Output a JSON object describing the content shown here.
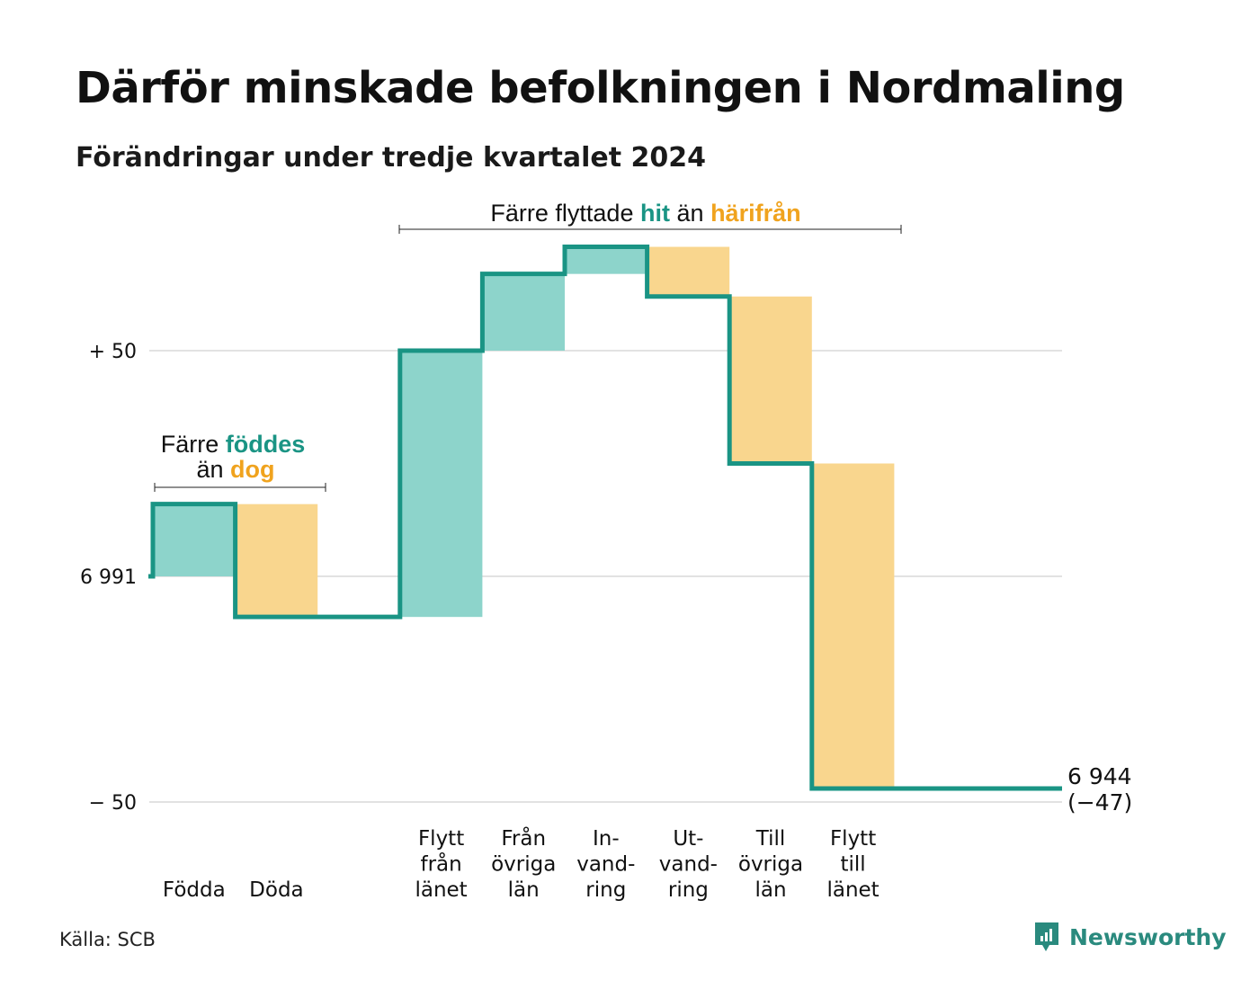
{
  "title": "Därför minskade befolkningen i Nordmaling",
  "subtitle": "Förändringar under tredje kvartalet 2024",
  "source": "Källa: SCB",
  "brand": {
    "name": "Newsworthy",
    "icon": "newsworthy-logo-icon"
  },
  "colors": {
    "increase": "#8dd4cb",
    "decrease": "#f9d68e",
    "line": "#1a9484",
    "grid": "#e2e2e2",
    "accent_teal": "#1a9484",
    "accent_orange": "#f0a31e"
  },
  "annotations": {
    "natural": {
      "line1_prefix": "Färre",
      "line1_highlight": "föddes",
      "line2_prefix": "än",
      "line2_highlight": "dog"
    },
    "migration": {
      "prefix": "Färre flyttade",
      "highlight1": "hit",
      "middle": "än",
      "highlight2": "härifrån"
    }
  },
  "end_label": {
    "value": "6 944",
    "change": "(−47)"
  },
  "chart_data": {
    "type": "waterfall",
    "title": "Därför minskade befolkningen i Nordmaling",
    "subtitle": "Förändringar under tredje kvartalet 2024",
    "start_value": 6991,
    "end_value": 6944,
    "net_change": -47,
    "y_axis": {
      "relative_to": 6991,
      "range": [
        -50,
        50
      ],
      "ticks": [
        {
          "value": 50,
          "label": "+ 50"
        },
        {
          "value": 0,
          "label": "6 991"
        },
        {
          "value": -50,
          "label": "− 50"
        }
      ]
    },
    "categories": [
      {
        "label": [
          "Födda"
        ],
        "change": 16
      },
      {
        "label": [
          "Döda"
        ],
        "change": -25
      },
      {
        "label": [],
        "change": 0
      },
      {
        "label": [
          "Flytt",
          "från",
          "länet"
        ],
        "change": 59
      },
      {
        "label": [
          "Från",
          "övriga",
          "län"
        ],
        "change": 17
      },
      {
        "label": [
          "In-",
          "vand-",
          "ring"
        ],
        "change": 6
      },
      {
        "label": [
          "Ut-",
          "vand-",
          "ring"
        ],
        "change": -11
      },
      {
        "label": [
          "Till",
          "övriga",
          "län"
        ],
        "change": -37
      },
      {
        "label": [
          "Flytt",
          "till",
          "länet"
        ],
        "change": -72
      },
      {
        "label": [],
        "change": 0
      }
    ]
  }
}
